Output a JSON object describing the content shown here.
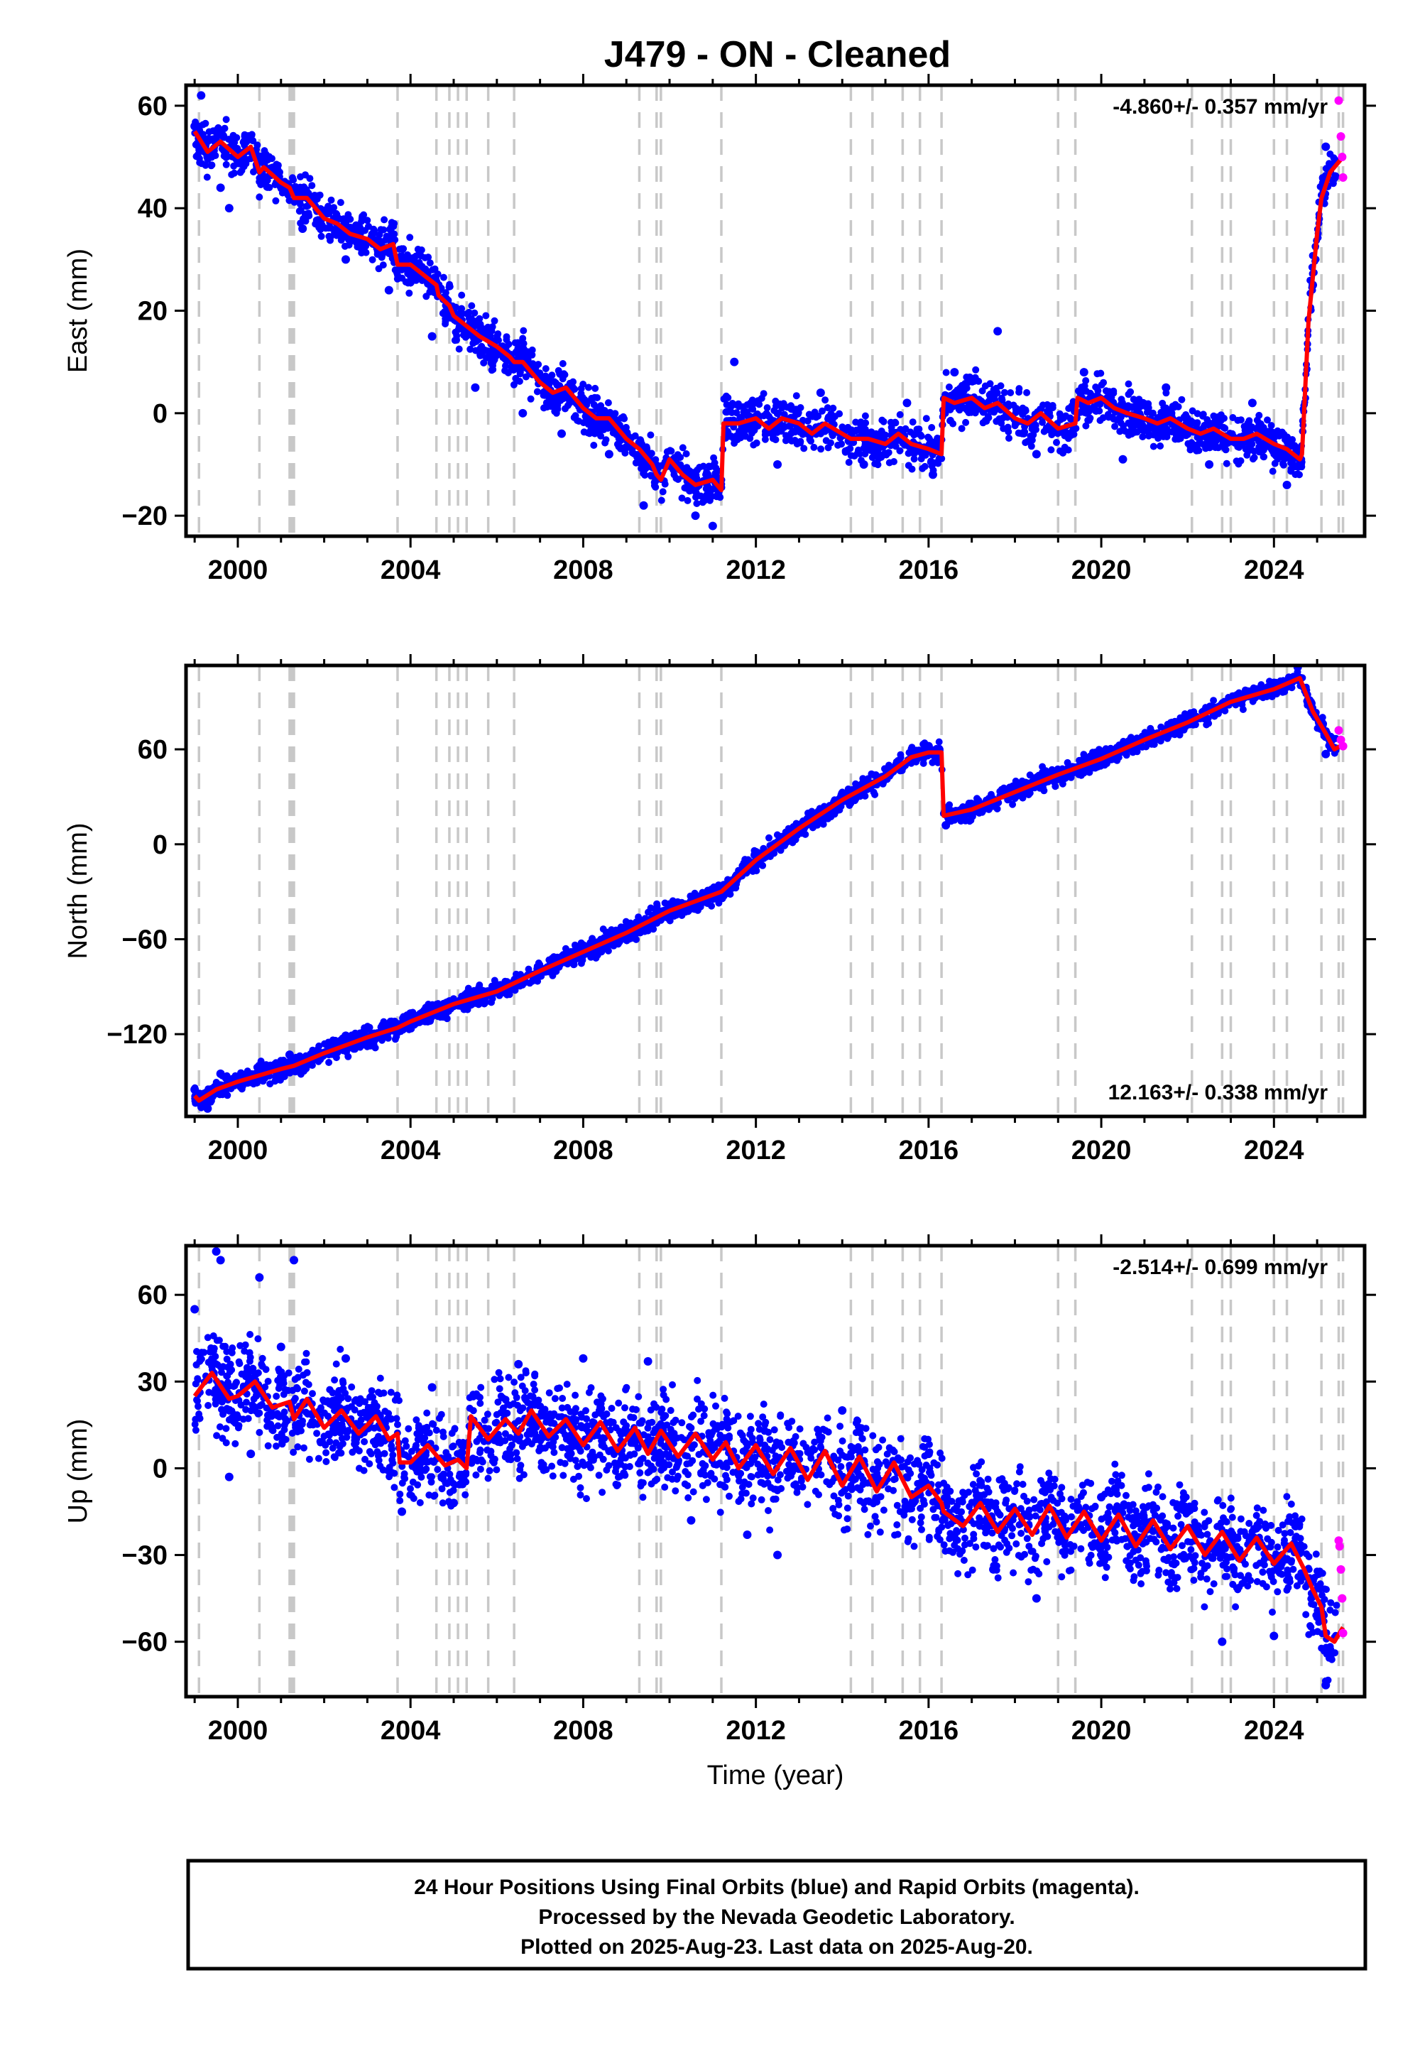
{
  "title": "J479  - ON - Cleaned",
  "footer": {
    "lines": [
      "24 Hour Positions Using Final Orbits (blue) and Rapid Orbits (magenta).",
      "Processed by the Nevada Geodetic Laboratory.",
      "Plotted on 2025-Aug-23. Last data on 2025-Aug-20."
    ]
  },
  "colors": {
    "final_orbits": "#0000ff",
    "rapid_orbits": "#ff00ff",
    "model": "#ff0000",
    "event_lines": "#c8c8c8"
  },
  "chart_data": [
    {
      "type": "scatter",
      "ylabel": "East (mm)",
      "xlabel": "",
      "xlim": [
        1998.8,
        2026.1
      ],
      "ylim": [
        -24,
        64
      ],
      "xticks": [
        2000,
        2004,
        2008,
        2012,
        2016,
        2020,
        2024
      ],
      "yticks": [
        -20,
        0,
        20,
        40,
        60
      ],
      "ytick_labels": [
        "−20",
        "0",
        "20",
        "40",
        "60"
      ],
      "rate": "-4.860+/- 0.357 mm/yr",
      "rate_position": "top-right",
      "event_lines": [
        1999.1,
        2000.5,
        2001.2,
        2001.25,
        2001.3,
        2003.7,
        2004.6,
        2004.9,
        2005.1,
        2005.3,
        2005.8,
        2006.4,
        2009.3,
        2009.7,
        2009.8,
        2011.2,
        2014.2,
        2014.7,
        2015.4,
        2015.8,
        2016.3,
        2019.0,
        2019.4,
        2022.1,
        2022.8,
        2023.0,
        2024.0,
        2024.3,
        2025.1,
        2025.5,
        2025.6
      ],
      "model_series": {
        "name": "model",
        "x": [
          1999.0,
          1999.3,
          1999.6,
          2000.0,
          2000.3,
          2000.5,
          2000.6,
          2001.0,
          2001.2,
          2001.3,
          2001.6,
          2002.0,
          2002.3,
          2002.6,
          2003.0,
          2003.3,
          2003.6,
          2003.7,
          2004.0,
          2004.3,
          2004.6,
          2004.65,
          2004.9,
          2005.0,
          2005.3,
          2005.6,
          2006.0,
          2006.3,
          2006.4,
          2006.6,
          2007.0,
          2007.3,
          2007.6,
          2008.0,
          2008.3,
          2008.6,
          2009.0,
          2009.3,
          2009.6,
          2009.7,
          2009.8,
          2010.0,
          2010.3,
          2010.6,
          2011.0,
          2011.2,
          2011.25,
          2011.6,
          2012.0,
          2012.3,
          2012.6,
          2013.0,
          2013.3,
          2013.6,
          2014.0,
          2014.2,
          2014.6,
          2015.0,
          2015.3,
          2015.6,
          2016.0,
          2016.3,
          2016.35,
          2016.6,
          2017.0,
          2017.3,
          2017.6,
          2018.0,
          2018.3,
          2018.6,
          2019.0,
          2019.4,
          2019.45,
          2019.7,
          2020.0,
          2020.3,
          2020.6,
          2021.0,
          2021.3,
          2021.6,
          2022.0,
          2022.3,
          2022.6,
          2023.0,
          2023.3,
          2023.6,
          2024.0,
          2024.3,
          2024.6,
          2024.65,
          2024.8,
          2025.0,
          2025.1,
          2025.3,
          2025.5,
          2025.6
        ],
        "y": [
          55,
          51,
          53,
          50,
          52,
          47,
          48,
          45,
          44,
          42,
          42,
          38,
          37,
          35,
          34,
          32,
          33,
          29,
          29,
          27,
          25,
          23,
          21,
          19,
          17,
          15,
          13,
          11,
          10,
          10,
          6,
          4,
          5,
          1,
          -1,
          -1,
          -5,
          -7,
          -10,
          -12,
          -13,
          -9,
          -12,
          -14,
          -13,
          -15,
          -2,
          -2,
          -1,
          -3,
          -1,
          -2,
          -4,
          -2,
          -4,
          -5,
          -5,
          -6,
          -4,
          -6,
          -7,
          -8,
          3,
          2,
          3,
          1,
          2,
          -1,
          -2,
          0,
          -3,
          -2,
          3,
          2,
          3,
          1,
          0,
          -1,
          -2,
          -1,
          -3,
          -4,
          -3,
          -5,
          -5,
          -4,
          -6,
          -7,
          -9,
          -8,
          18,
          35,
          42,
          47,
          49,
          50
        ]
      },
      "final_scatter": [
        {
          "x": 1999.0,
          "y": 56
        },
        {
          "x": 1999.15,
          "y": 62
        },
        {
          "x": 1999.3,
          "y": 50
        },
        {
          "x": 1999.6,
          "y": 44
        },
        {
          "x": 1999.8,
          "y": 40
        },
        {
          "x": 2000.5,
          "y": 50
        },
        {
          "x": 2001.5,
          "y": 36
        },
        {
          "x": 2002.5,
          "y": 30
        },
        {
          "x": 2003.5,
          "y": 24
        },
        {
          "x": 2004.5,
          "y": 15
        },
        {
          "x": 2005.5,
          "y": 5
        },
        {
          "x": 2006.6,
          "y": 0
        },
        {
          "x": 2007.5,
          "y": -4
        },
        {
          "x": 2008.6,
          "y": -8
        },
        {
          "x": 2009.4,
          "y": -18
        },
        {
          "x": 2010.6,
          "y": -20
        },
        {
          "x": 2011.0,
          "y": -22
        },
        {
          "x": 2011.5,
          "y": 10
        },
        {
          "x": 2012.5,
          "y": -10
        },
        {
          "x": 2013.5,
          "y": 4
        },
        {
          "x": 2014.5,
          "y": -10
        },
        {
          "x": 2015.5,
          "y": 2
        },
        {
          "x": 2016.1,
          "y": -12
        },
        {
          "x": 2016.6,
          "y": 8
        },
        {
          "x": 2017.6,
          "y": 16
        },
        {
          "x": 2018.5,
          "y": -8
        },
        {
          "x": 2019.6,
          "y": 8
        },
        {
          "x": 2020.5,
          "y": -9
        },
        {
          "x": 2021.5,
          "y": 5
        },
        {
          "x": 2022.5,
          "y": -10
        },
        {
          "x": 2023.5,
          "y": 2
        },
        {
          "x": 2024.3,
          "y": -14
        },
        {
          "x": 2024.9,
          "y": 25
        },
        {
          "x": 2025.2,
          "y": 52
        }
      ],
      "rapid_scatter": [
        {
          "x": 2025.5,
          "y": 61
        },
        {
          "x": 2025.55,
          "y": 54
        },
        {
          "x": 2025.58,
          "y": 50
        },
        {
          "x": 2025.6,
          "y": 46
        }
      ]
    },
    {
      "type": "scatter",
      "ylabel": "North (mm)",
      "xlabel": "",
      "xlim": [
        1998.8,
        2026.1
      ],
      "ylim": [
        -172,
        113
      ],
      "xticks": [
        2000,
        2004,
        2008,
        2012,
        2016,
        2020,
        2024
      ],
      "yticks": [
        -120,
        -60,
        0,
        60
      ],
      "ytick_labels": [
        "−120",
        "−60",
        "0",
        "60"
      ],
      "rate": "12.163+/- 0.338 mm/yr",
      "rate_position": "bottom-right",
      "event_lines": [
        1999.1,
        2000.5,
        2001.2,
        2001.25,
        2001.3,
        2003.7,
        2004.6,
        2004.9,
        2005.1,
        2005.3,
        2005.8,
        2006.4,
        2009.3,
        2009.7,
        2009.8,
        2011.2,
        2014.2,
        2014.7,
        2015.4,
        2015.8,
        2016.3,
        2019.0,
        2019.4,
        2022.1,
        2022.8,
        2023.0,
        2024.0,
        2024.3,
        2025.1,
        2025.5,
        2025.6
      ],
      "model_series": {
        "name": "model",
        "x": [
          1999.0,
          1999.1,
          1999.5,
          2000.0,
          2000.5,
          2001.0,
          2001.3,
          2002.0,
          2003.0,
          2003.7,
          2004.0,
          2005.0,
          2006.0,
          2007.0,
          2008.0,
          2009.0,
          2010.0,
          2011.0,
          2011.2,
          2012.0,
          2013.0,
          2014.0,
          2015.0,
          2015.6,
          2016.0,
          2016.3,
          2016.35,
          2017.0,
          2018.0,
          2019.0,
          2020.0,
          2021.0,
          2022.0,
          2023.0,
          2024.0,
          2024.6,
          2024.9,
          2025.2,
          2025.4,
          2025.6
        ],
        "y": [
          -159,
          -162,
          -155,
          -150,
          -146,
          -142,
          -140,
          -132,
          -122,
          -116,
          -112,
          -101,
          -93,
          -80,
          -68,
          -56,
          -42,
          -32,
          -30,
          -10,
          10,
          28,
          43,
          55,
          58,
          58,
          18,
          22,
          33,
          44,
          54,
          66,
          77,
          90,
          98,
          105,
          84,
          70,
          60,
          63
        ]
      },
      "final_scatter": [
        {
          "x": 1999.0,
          "y": -155
        },
        {
          "x": 1999.3,
          "y": -167
        },
        {
          "x": 1999.6,
          "y": -145
        },
        {
          "x": 2000.5,
          "y": -140
        },
        {
          "x": 2001.2,
          "y": -133
        },
        {
          "x": 2002.5,
          "y": -121
        },
        {
          "x": 2004.0,
          "y": -107
        },
        {
          "x": 2006.0,
          "y": -89
        },
        {
          "x": 2008.0,
          "y": -64
        },
        {
          "x": 2010.0,
          "y": -38
        },
        {
          "x": 2012.0,
          "y": -5
        },
        {
          "x": 2014.0,
          "y": 32
        },
        {
          "x": 2016.0,
          "y": 62
        },
        {
          "x": 2016.4,
          "y": 12
        },
        {
          "x": 2018.0,
          "y": 37
        },
        {
          "x": 2020.0,
          "y": 58
        },
        {
          "x": 2022.0,
          "y": 80
        },
        {
          "x": 2024.0,
          "y": 102
        },
        {
          "x": 2024.55,
          "y": 112
        },
        {
          "x": 2025.2,
          "y": 57
        }
      ],
      "rapid_scatter": [
        {
          "x": 2025.5,
          "y": 72
        },
        {
          "x": 2025.55,
          "y": 66
        },
        {
          "x": 2025.6,
          "y": 62
        }
      ]
    },
    {
      "type": "scatter",
      "ylabel": "Up (mm)",
      "xlabel": "Time (year)",
      "xlim": [
        1998.8,
        2026.1
      ],
      "ylim": [
        -79,
        77
      ],
      "xticks": [
        2000,
        2004,
        2008,
        2012,
        2016,
        2020,
        2024
      ],
      "yticks": [
        -60,
        -30,
        0,
        30,
        60
      ],
      "ytick_labels": [
        "−60",
        "−30",
        "0",
        "30",
        "60"
      ],
      "rate": "-2.514+/- 0.699 mm/yr",
      "rate_position": "top-right",
      "event_lines": [
        1999.1,
        2000.5,
        2001.2,
        2001.25,
        2001.3,
        2003.7,
        2004.6,
        2004.9,
        2005.1,
        2005.3,
        2005.8,
        2006.4,
        2009.3,
        2009.7,
        2009.8,
        2011.2,
        2014.2,
        2014.7,
        2015.4,
        2015.8,
        2016.3,
        2019.0,
        2019.4,
        2022.1,
        2022.8,
        2023.0,
        2024.0,
        2024.3,
        2025.1,
        2025.5,
        2025.6
      ],
      "model_series": {
        "name": "model",
        "x": [
          1999.0,
          1999.4,
          1999.8,
          2000.0,
          2000.4,
          2000.8,
          2001.2,
          2001.3,
          2001.6,
          2002.0,
          2002.4,
          2002.8,
          2003.2,
          2003.5,
          2003.7,
          2003.75,
          2004.0,
          2004.4,
          2004.8,
          2005.1,
          2005.3,
          2005.4,
          2005.8,
          2006.2,
          2006.5,
          2006.8,
          2007.2,
          2007.6,
          2008.0,
          2008.4,
          2008.8,
          2009.2,
          2009.5,
          2009.8,
          2010.2,
          2010.6,
          2011.0,
          2011.3,
          2011.6,
          2012.0,
          2012.4,
          2012.8,
          2013.2,
          2013.6,
          2014.0,
          2014.4,
          2014.8,
          2015.2,
          2015.6,
          2016.0,
          2016.3,
          2016.35,
          2016.8,
          2017.2,
          2017.6,
          2018.0,
          2018.4,
          2018.8,
          2019.2,
          2019.6,
          2020.0,
          2020.4,
          2020.8,
          2021.2,
          2021.6,
          2022.0,
          2022.4,
          2022.8,
          2023.2,
          2023.6,
          2024.0,
          2024.4,
          2024.7,
          2024.9,
          2025.1,
          2025.2,
          2025.4,
          2025.6
        ],
        "y": [
          25,
          33,
          24,
          25,
          30,
          21,
          23,
          17,
          24,
          14,
          20,
          12,
          18,
          10,
          12,
          2,
          2,
          8,
          1,
          3,
          0,
          18,
          10,
          17,
          12,
          20,
          11,
          17,
          8,
          16,
          6,
          14,
          5,
          13,
          4,
          12,
          3,
          9,
          0,
          8,
          -2,
          7,
          -4,
          6,
          -6,
          4,
          -8,
          2,
          -10,
          -6,
          -12,
          -15,
          -20,
          -12,
          -22,
          -14,
          -23,
          -13,
          -24,
          -15,
          -25,
          -16,
          -27,
          -18,
          -28,
          -20,
          -30,
          -22,
          -32,
          -24,
          -33,
          -26,
          -35,
          -42,
          -48,
          -58,
          -60,
          -55
        ]
      },
      "final_scatter": [
        {
          "x": 1999.5,
          "y": 75
        },
        {
          "x": 1999.6,
          "y": 72
        },
        {
          "x": 2000.5,
          "y": 66
        },
        {
          "x": 2001.3,
          "y": 72
        },
        {
          "x": 1999.0,
          "y": 55
        },
        {
          "x": 1999.8,
          "y": -3
        },
        {
          "x": 2000.3,
          "y": 5
        },
        {
          "x": 2001.0,
          "y": 42
        },
        {
          "x": 2002.5,
          "y": 38
        },
        {
          "x": 2003.8,
          "y": -15
        },
        {
          "x": 2004.5,
          "y": 28
        },
        {
          "x": 2005.0,
          "y": -12
        },
        {
          "x": 2006.5,
          "y": 36
        },
        {
          "x": 2008.0,
          "y": 38
        },
        {
          "x": 2009.5,
          "y": 37
        },
        {
          "x": 2010.5,
          "y": -18
        },
        {
          "x": 2011.8,
          "y": -23
        },
        {
          "x": 2012.5,
          "y": -30
        },
        {
          "x": 2014.0,
          "y": 20
        },
        {
          "x": 2016.0,
          "y": 5
        },
        {
          "x": 2017.5,
          "y": -35
        },
        {
          "x": 2018.5,
          "y": -45
        },
        {
          "x": 2020.0,
          "y": -10
        },
        {
          "x": 2022.0,
          "y": -15
        },
        {
          "x": 2022.8,
          "y": -60
        },
        {
          "x": 2024.0,
          "y": -58
        },
        {
          "x": 2024.5,
          "y": -20
        },
        {
          "x": 2025.2,
          "y": -75
        }
      ],
      "rapid_scatter": [
        {
          "x": 2025.5,
          "y": -25
        },
        {
          "x": 2025.52,
          "y": -27
        },
        {
          "x": 2025.55,
          "y": -35
        },
        {
          "x": 2025.58,
          "y": -45
        },
        {
          "x": 2025.6,
          "y": -57
        }
      ]
    }
  ]
}
